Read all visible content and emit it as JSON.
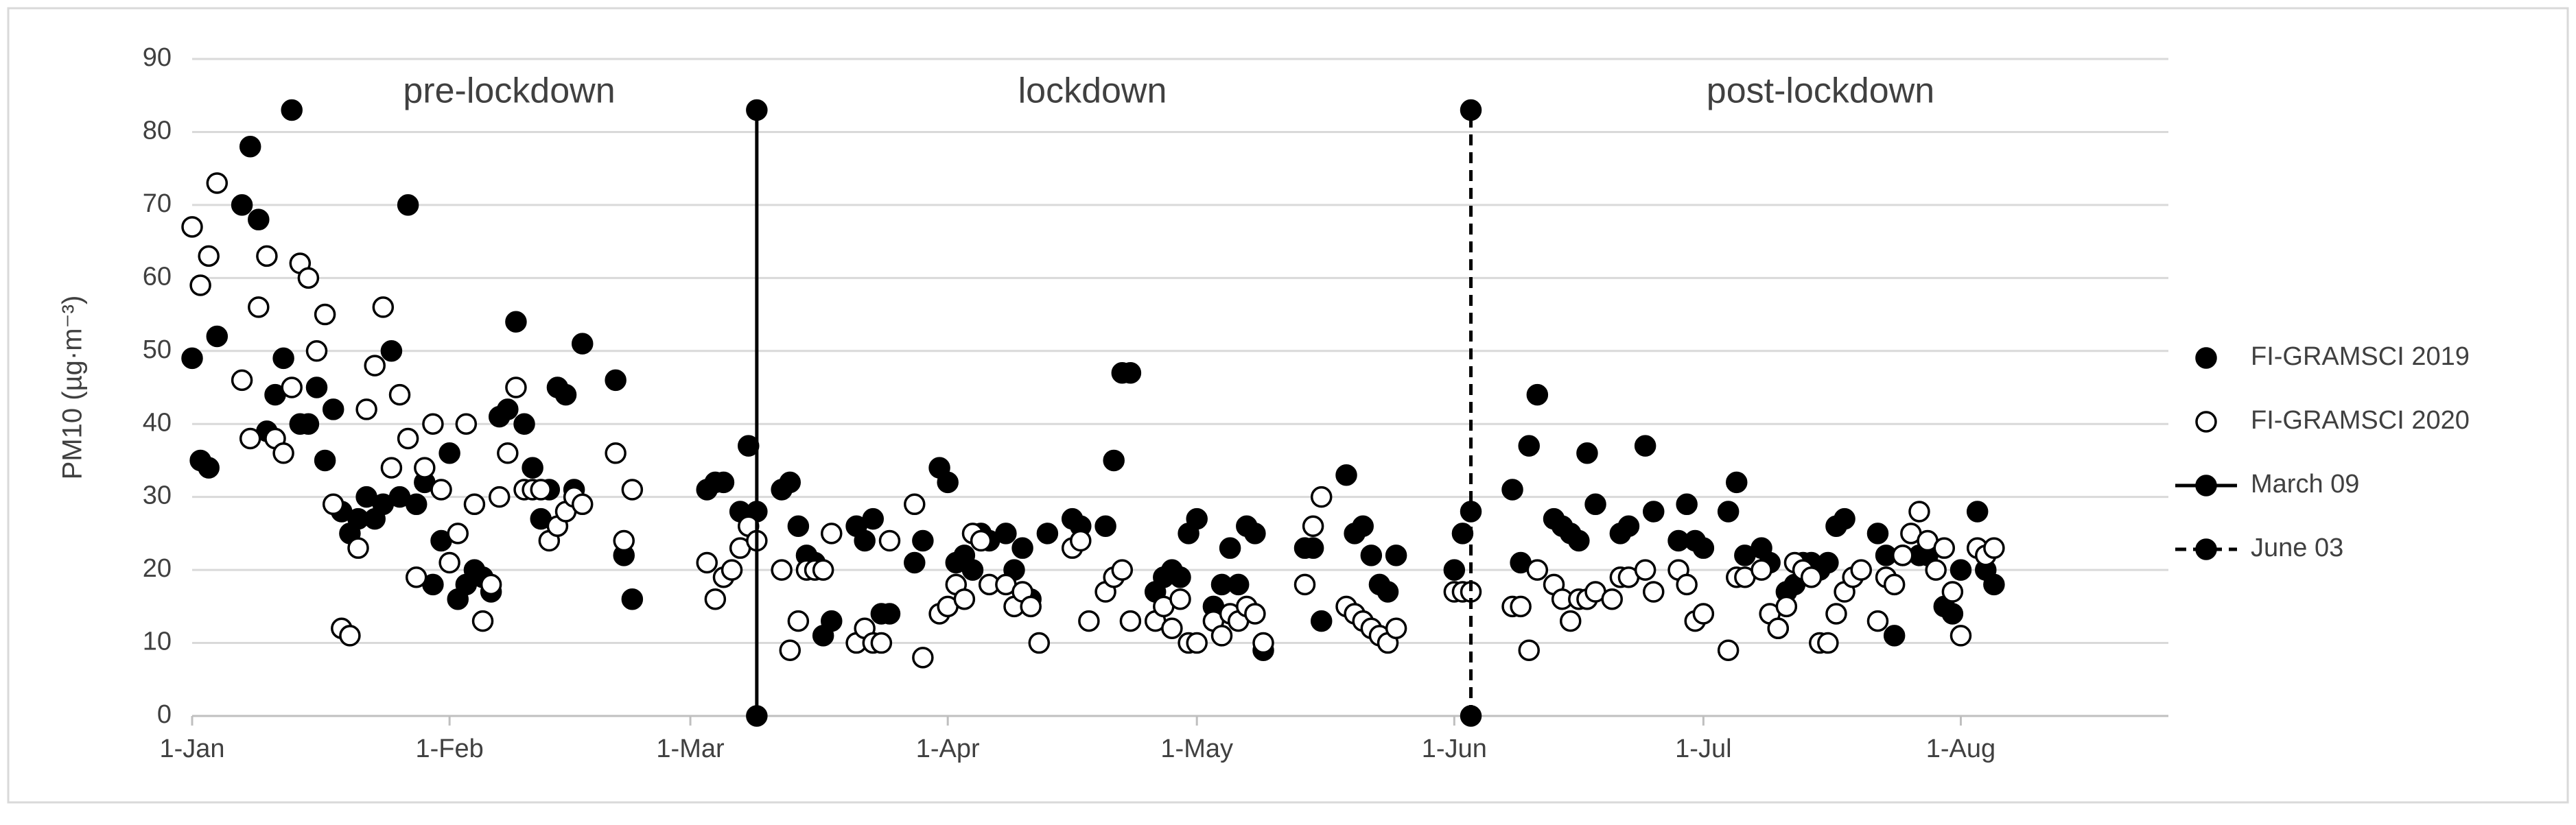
{
  "chart_data": {
    "type": "scatter",
    "y_label": "PM10 (µg·m⁻³)",
    "annotations": [
      "pre-lockdown",
      "lockdown",
      "post-lockdown"
    ],
    "xlim": [
      0,
      238
    ],
    "ylim": [
      0,
      90
    ],
    "xticks": [
      {
        "value": 0,
        "label": "1-Jan"
      },
      {
        "value": 31,
        "label": "1-Feb"
      },
      {
        "value": 60,
        "label": "1-Mar"
      },
      {
        "value": 91,
        "label": "1-Apr"
      },
      {
        "value": 121,
        "label": "1-May"
      },
      {
        "value": 152,
        "label": "1-Jun"
      },
      {
        "value": 182,
        "label": "1-Jul"
      },
      {
        "value": 213,
        "label": "1-Aug"
      }
    ],
    "yticks": [
      0,
      10,
      20,
      30,
      40,
      50,
      60,
      70,
      80,
      90
    ],
    "grid": true,
    "series": [
      {
        "name": "FI-GRAMSCI 2019",
        "kind": "points",
        "color": "#000000",
        "fill": "#000000",
        "x": [
          0,
          1,
          2,
          3,
          6,
          7,
          8,
          9,
          10,
          11,
          12,
          13,
          14,
          15,
          16,
          17,
          18,
          19,
          20,
          21,
          22,
          23,
          24,
          25,
          26,
          27,
          28,
          29,
          30,
          31,
          32,
          33,
          34,
          35,
          36,
          37,
          38,
          39,
          40,
          41,
          42,
          43,
          44,
          45,
          46,
          47,
          51,
          52,
          53,
          62,
          63,
          64,
          66,
          67,
          68,
          71,
          72,
          73,
          74,
          75,
          76,
          77,
          80,
          81,
          82,
          83,
          84,
          87,
          88,
          90,
          91,
          92,
          93,
          94,
          95,
          96,
          98,
          99,
          100,
          101,
          103,
          106,
          107,
          110,
          111,
          112,
          113,
          116,
          117,
          118,
          119,
          120,
          121,
          123,
          124,
          125,
          126,
          127,
          128,
          129,
          134,
          135,
          136,
          139,
          140,
          141,
          142,
          143,
          144,
          145,
          152,
          153,
          154,
          159,
          160,
          161,
          162,
          164,
          165,
          166,
          167,
          168,
          169,
          172,
          173,
          175,
          176,
          179,
          180,
          181,
          182,
          185,
          186,
          187,
          189,
          190,
          191,
          192,
          193,
          194,
          195,
          196,
          197,
          198,
          199,
          203,
          204,
          205,
          206,
          208,
          209,
          211,
          212,
          213,
          215,
          216,
          217
        ],
        "values": [
          49,
          35,
          34,
          52,
          70,
          78,
          68,
          39,
          44,
          49,
          83,
          40,
          40,
          45,
          35,
          42,
          28,
          25,
          27,
          30,
          27,
          29,
          50,
          30,
          70,
          29,
          32,
          18,
          24,
          36,
          16,
          18,
          20,
          19,
          17,
          41,
          42,
          54,
          40,
          34,
          27,
          31,
          45,
          44,
          31,
          51,
          46,
          22,
          16,
          31,
          32,
          32,
          28,
          37,
          28,
          31,
          32,
          26,
          22,
          21,
          11,
          13,
          26,
          24,
          27,
          14,
          14,
          21,
          24,
          34,
          32,
          21,
          22,
          20,
          25,
          24,
          25,
          20,
          23,
          16,
          25,
          27,
          26,
          26,
          35,
          47,
          47,
          17,
          19,
          20,
          19,
          25,
          27,
          15,
          18,
          23,
          18,
          26,
          25,
          9,
          23,
          23,
          13,
          33,
          25,
          26,
          22,
          18,
          17,
          22,
          20,
          25,
          28,
          31,
          21,
          37,
          44,
          27,
          26,
          25,
          24,
          36,
          29,
          25,
          26,
          37,
          28,
          24,
          29,
          24,
          23,
          28,
          32,
          22,
          23,
          21,
          12,
          17,
          18,
          21,
          21,
          20,
          21,
          26,
          27,
          25,
          22,
          11,
          22,
          22,
          22,
          15,
          14,
          20,
          28,
          20,
          18
        ]
      },
      {
        "name": "FI-GRAMSCI 2020",
        "kind": "points",
        "color": "#000000",
        "fill": "#ffffff",
        "x": [
          0,
          1,
          2,
          3,
          6,
          7,
          8,
          9,
          10,
          11,
          12,
          13,
          14,
          15,
          16,
          17,
          18,
          19,
          20,
          21,
          22,
          23,
          24,
          25,
          26,
          27,
          28,
          29,
          30,
          31,
          32,
          33,
          34,
          35,
          36,
          37,
          38,
          39,
          40,
          41,
          42,
          43,
          44,
          45,
          46,
          47,
          51,
          52,
          53,
          62,
          63,
          64,
          65,
          66,
          67,
          68,
          71,
          72,
          73,
          74,
          75,
          76,
          77,
          80,
          81,
          82,
          83,
          84,
          87,
          88,
          90,
          91,
          92,
          93,
          94,
          95,
          96,
          98,
          99,
          100,
          101,
          102,
          106,
          107,
          108,
          110,
          111,
          112,
          113,
          116,
          117,
          118,
          119,
          120,
          121,
          123,
          124,
          125,
          126,
          127,
          128,
          129,
          134,
          135,
          136,
          139,
          140,
          141,
          142,
          143,
          144,
          145,
          152,
          153,
          154,
          159,
          160,
          161,
          162,
          164,
          165,
          166,
          167,
          168,
          169,
          171,
          172,
          173,
          175,
          176,
          179,
          180,
          181,
          182,
          185,
          186,
          187,
          189,
          190,
          191,
          192,
          193,
          194,
          195,
          196,
          197,
          198,
          199,
          200,
          201,
          203,
          204,
          205,
          206,
          207,
          208,
          209,
          210,
          211,
          212,
          213,
          215,
          216,
          217
        ],
        "values": [
          67,
          59,
          63,
          73,
          46,
          38,
          56,
          63,
          38,
          36,
          45,
          62,
          60,
          50,
          55,
          29,
          12,
          11,
          23,
          42,
          48,
          56,
          34,
          44,
          38,
          19,
          34,
          40,
          31,
          21,
          25,
          40,
          29,
          13,
          18,
          30,
          36,
          45,
          31,
          31,
          31,
          24,
          26,
          28,
          30,
          29,
          36,
          24,
          31,
          21,
          16,
          19,
          20,
          23,
          26,
          24,
          20,
          9,
          13,
          20,
          20,
          20,
          25,
          10,
          12,
          10,
          10,
          24,
          29,
          8,
          14,
          15,
          18,
          16,
          25,
          24,
          18,
          18,
          15,
          17,
          15,
          10,
          23,
          24,
          13,
          17,
          19,
          20,
          13,
          13,
          15,
          12,
          16,
          10,
          10,
          13,
          11,
          14,
          13,
          15,
          14,
          10,
          18,
          26,
          30,
          15,
          14,
          13,
          12,
          11,
          10,
          12,
          17,
          17,
          17,
          15,
          15,
          9,
          20,
          18,
          16,
          13,
          16,
          16,
          17,
          16,
          19,
          19,
          20,
          17,
          20,
          18,
          13,
          14,
          9,
          19,
          19,
          20,
          14,
          12,
          15,
          21,
          20,
          19,
          10,
          10,
          14,
          17,
          19,
          20,
          13,
          19,
          18,
          22,
          25,
          28,
          24,
          20,
          23,
          17,
          11,
          23,
          22,
          23
        ]
      },
      {
        "name": "March 09",
        "kind": "line",
        "dash": false,
        "color": "#000000",
        "fill": "#000000",
        "x": [
          68,
          68
        ],
        "values": [
          0,
          83
        ]
      },
      {
        "name": "June 03",
        "kind": "line",
        "dash": true,
        "color": "#000000",
        "fill": "#000000",
        "x": [
          154,
          154
        ],
        "values": [
          0,
          83
        ]
      }
    ]
  }
}
